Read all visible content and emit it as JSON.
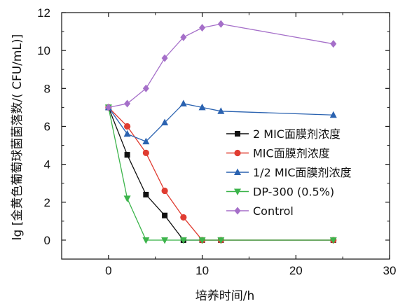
{
  "chart_data": {
    "type": "line",
    "title": "",
    "xlabel": "培养时间/h",
    "ylabel": "lg [金黄色葡萄球菌菌落数/( CFU/mL)]",
    "xlim": [
      -5,
      30
    ],
    "ylim": [
      -1,
      12
    ],
    "xticks": [
      0,
      10,
      20,
      30
    ],
    "yticks": [
      0,
      2,
      4,
      6,
      8,
      10,
      12
    ],
    "grid": false,
    "legend_position": "right",
    "series": [
      {
        "name": "2 MIC面膜剂浓度",
        "color": "#111111",
        "marker": "square",
        "x": [
          0,
          2,
          4,
          6,
          8,
          10,
          12,
          24
        ],
        "y": [
          7.0,
          4.5,
          2.4,
          1.3,
          0,
          0,
          0,
          0
        ]
      },
      {
        "name": "MIC面膜剂浓度",
        "color": "#e03c31",
        "marker": "circle",
        "x": [
          0,
          2,
          4,
          6,
          8,
          10,
          12,
          24
        ],
        "y": [
          7.0,
          6.0,
          4.6,
          2.6,
          1.2,
          0,
          0,
          0
        ]
      },
      {
        "name": "1/2 MIC面膜剂浓度",
        "color": "#2a62b0",
        "marker": "triangle-up",
        "x": [
          0,
          2,
          4,
          6,
          8,
          10,
          12,
          24
        ],
        "y": [
          7.0,
          5.6,
          5.2,
          6.2,
          7.2,
          7.0,
          6.8,
          6.6
        ]
      },
      {
        "name": "DP-300 (0.5%)",
        "color": "#3cb44b",
        "marker": "triangle-down",
        "x": [
          0,
          2,
          4,
          6,
          8,
          10,
          12,
          24
        ],
        "y": [
          7.0,
          2.2,
          0,
          0,
          0,
          0,
          0,
          0
        ]
      },
      {
        "name": "Control",
        "color": "#a56fc9",
        "marker": "diamond",
        "x": [
          0,
          2,
          4,
          6,
          8,
          10,
          12,
          24
        ],
        "y": [
          7.0,
          7.2,
          8.0,
          9.6,
          10.7,
          11.2,
          11.4,
          10.35
        ]
      }
    ]
  }
}
